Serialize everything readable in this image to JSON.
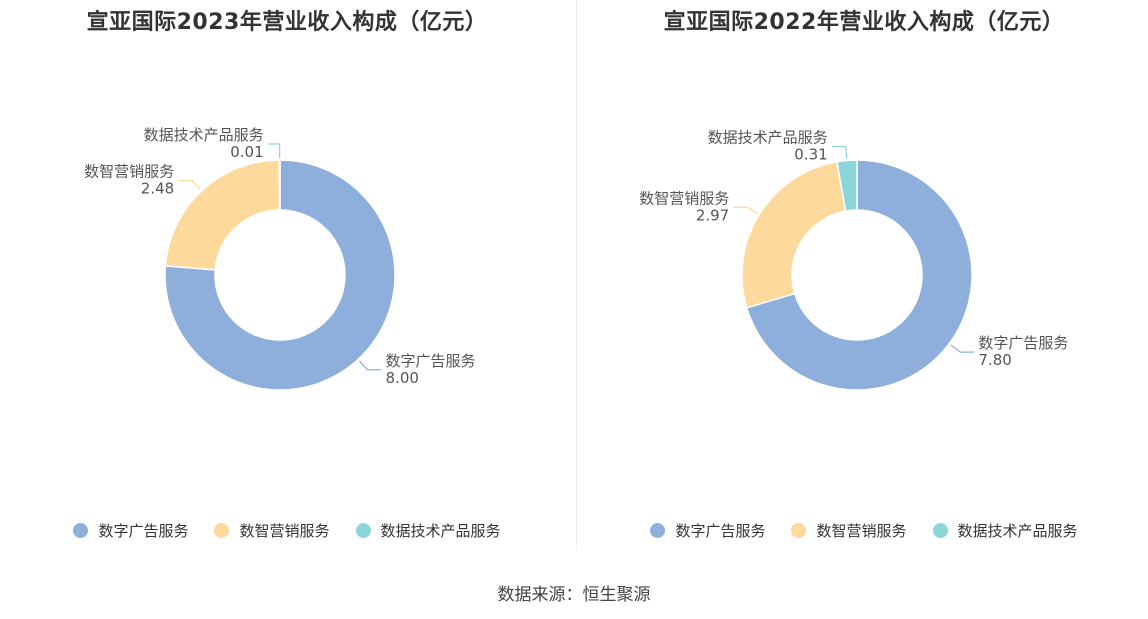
{
  "colors": {
    "digital_ads": "#8eaedc",
    "smart_marketing": "#fdd99b",
    "data_tech": "#8bd6d9"
  },
  "legend": [
    "数字广告服务",
    "数智营销服务",
    "数据技术产品服务"
  ],
  "source": "数据来源：恒生聚源",
  "chart_data": [
    {
      "type": "pie",
      "title": "宣亚国际2023年营业收入构成（亿元）",
      "donut": true,
      "categories": [
        "数字广告服务",
        "数智营销服务",
        "数据技术产品服务"
      ],
      "values": [
        8.0,
        2.48,
        0.01
      ],
      "value_labels": [
        "8.00",
        "2.48",
        "0.01"
      ],
      "legend_position": "bottom"
    },
    {
      "type": "pie",
      "title": "宣亚国际2022年营业收入构成（亿元）",
      "donut": true,
      "categories": [
        "数字广告服务",
        "数智营销服务",
        "数据技术产品服务"
      ],
      "values": [
        7.8,
        2.97,
        0.31
      ],
      "value_labels": [
        "7.80",
        "2.97",
        "0.31"
      ],
      "legend_position": "bottom"
    }
  ]
}
